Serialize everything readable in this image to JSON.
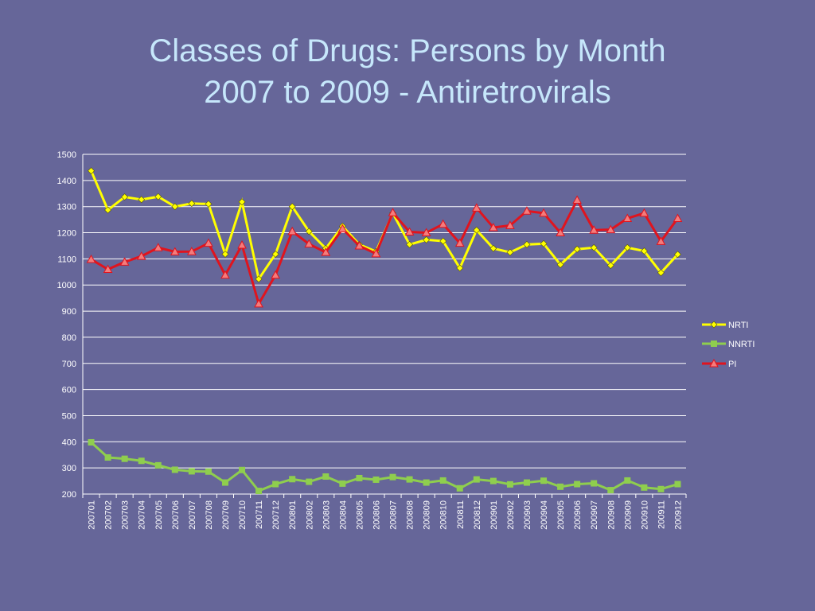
{
  "title": {
    "line1": "Classes of Drugs: Persons by Month",
    "line2": "2007 to 2009 - Antiretrovirals"
  },
  "chart_data": {
    "type": "line",
    "title": "Classes of Drugs: Persons by Month 2007 to 2009 - Antiretrovirals",
    "xlabel": "",
    "ylabel": "",
    "ylim": [
      200,
      1500
    ],
    "yticks": [
      200,
      300,
      400,
      500,
      600,
      700,
      800,
      900,
      1000,
      1100,
      1200,
      1300,
      1400,
      1500
    ],
    "grid": true,
    "legend_position": "right",
    "categories": [
      "200701",
      "200702",
      "200703",
      "200704",
      "200705",
      "200706",
      "200707",
      "200708",
      "200709",
      "200710",
      "200711",
      "200712",
      "200801",
      "200802",
      "200803",
      "200804",
      "200805",
      "200806",
      "200807",
      "200808",
      "200809",
      "200810",
      "200811",
      "200812",
      "200901",
      "200902",
      "200903",
      "200904",
      "200905",
      "200906",
      "200907",
      "200908",
      "200909",
      "200910",
      "200911",
      "200912"
    ],
    "series": [
      {
        "name": "NRTI",
        "color": "#ffff00",
        "marker": "diamond",
        "values": [
          1437,
          1287,
          1337,
          1327,
          1338,
          1300,
          1312,
          1310,
          1118,
          1318,
          1023,
          1118,
          1300,
          1205,
          1140,
          1225,
          1155,
          1128,
          1275,
          1155,
          1173,
          1168,
          1065,
          1210,
          1140,
          1125,
          1155,
          1158,
          1078,
          1137,
          1143,
          1075,
          1143,
          1130,
          1047,
          1117
        ]
      },
      {
        "name": "NNRTI",
        "color": "#8fce4e",
        "marker": "square",
        "values": [
          398,
          340,
          335,
          327,
          310,
          293,
          287,
          286,
          244,
          292,
          212,
          238,
          257,
          247,
          267,
          240,
          261,
          255,
          265,
          256,
          244,
          252,
          222,
          256,
          250,
          237,
          244,
          251,
          228,
          238,
          241,
          215,
          252,
          225,
          219,
          238
        ]
      },
      {
        "name": "PI",
        "color": "#e0141e",
        "marker": "triangle",
        "values": [
          1098,
          1060,
          1088,
          1110,
          1143,
          1127,
          1128,
          1160,
          1038,
          1153,
          928,
          1038,
          1205,
          1157,
          1125,
          1215,
          1150,
          1120,
          1277,
          1203,
          1200,
          1233,
          1160,
          1295,
          1220,
          1228,
          1283,
          1275,
          1200,
          1325,
          1210,
          1212,
          1255,
          1275,
          1167,
          1255
        ]
      }
    ]
  }
}
